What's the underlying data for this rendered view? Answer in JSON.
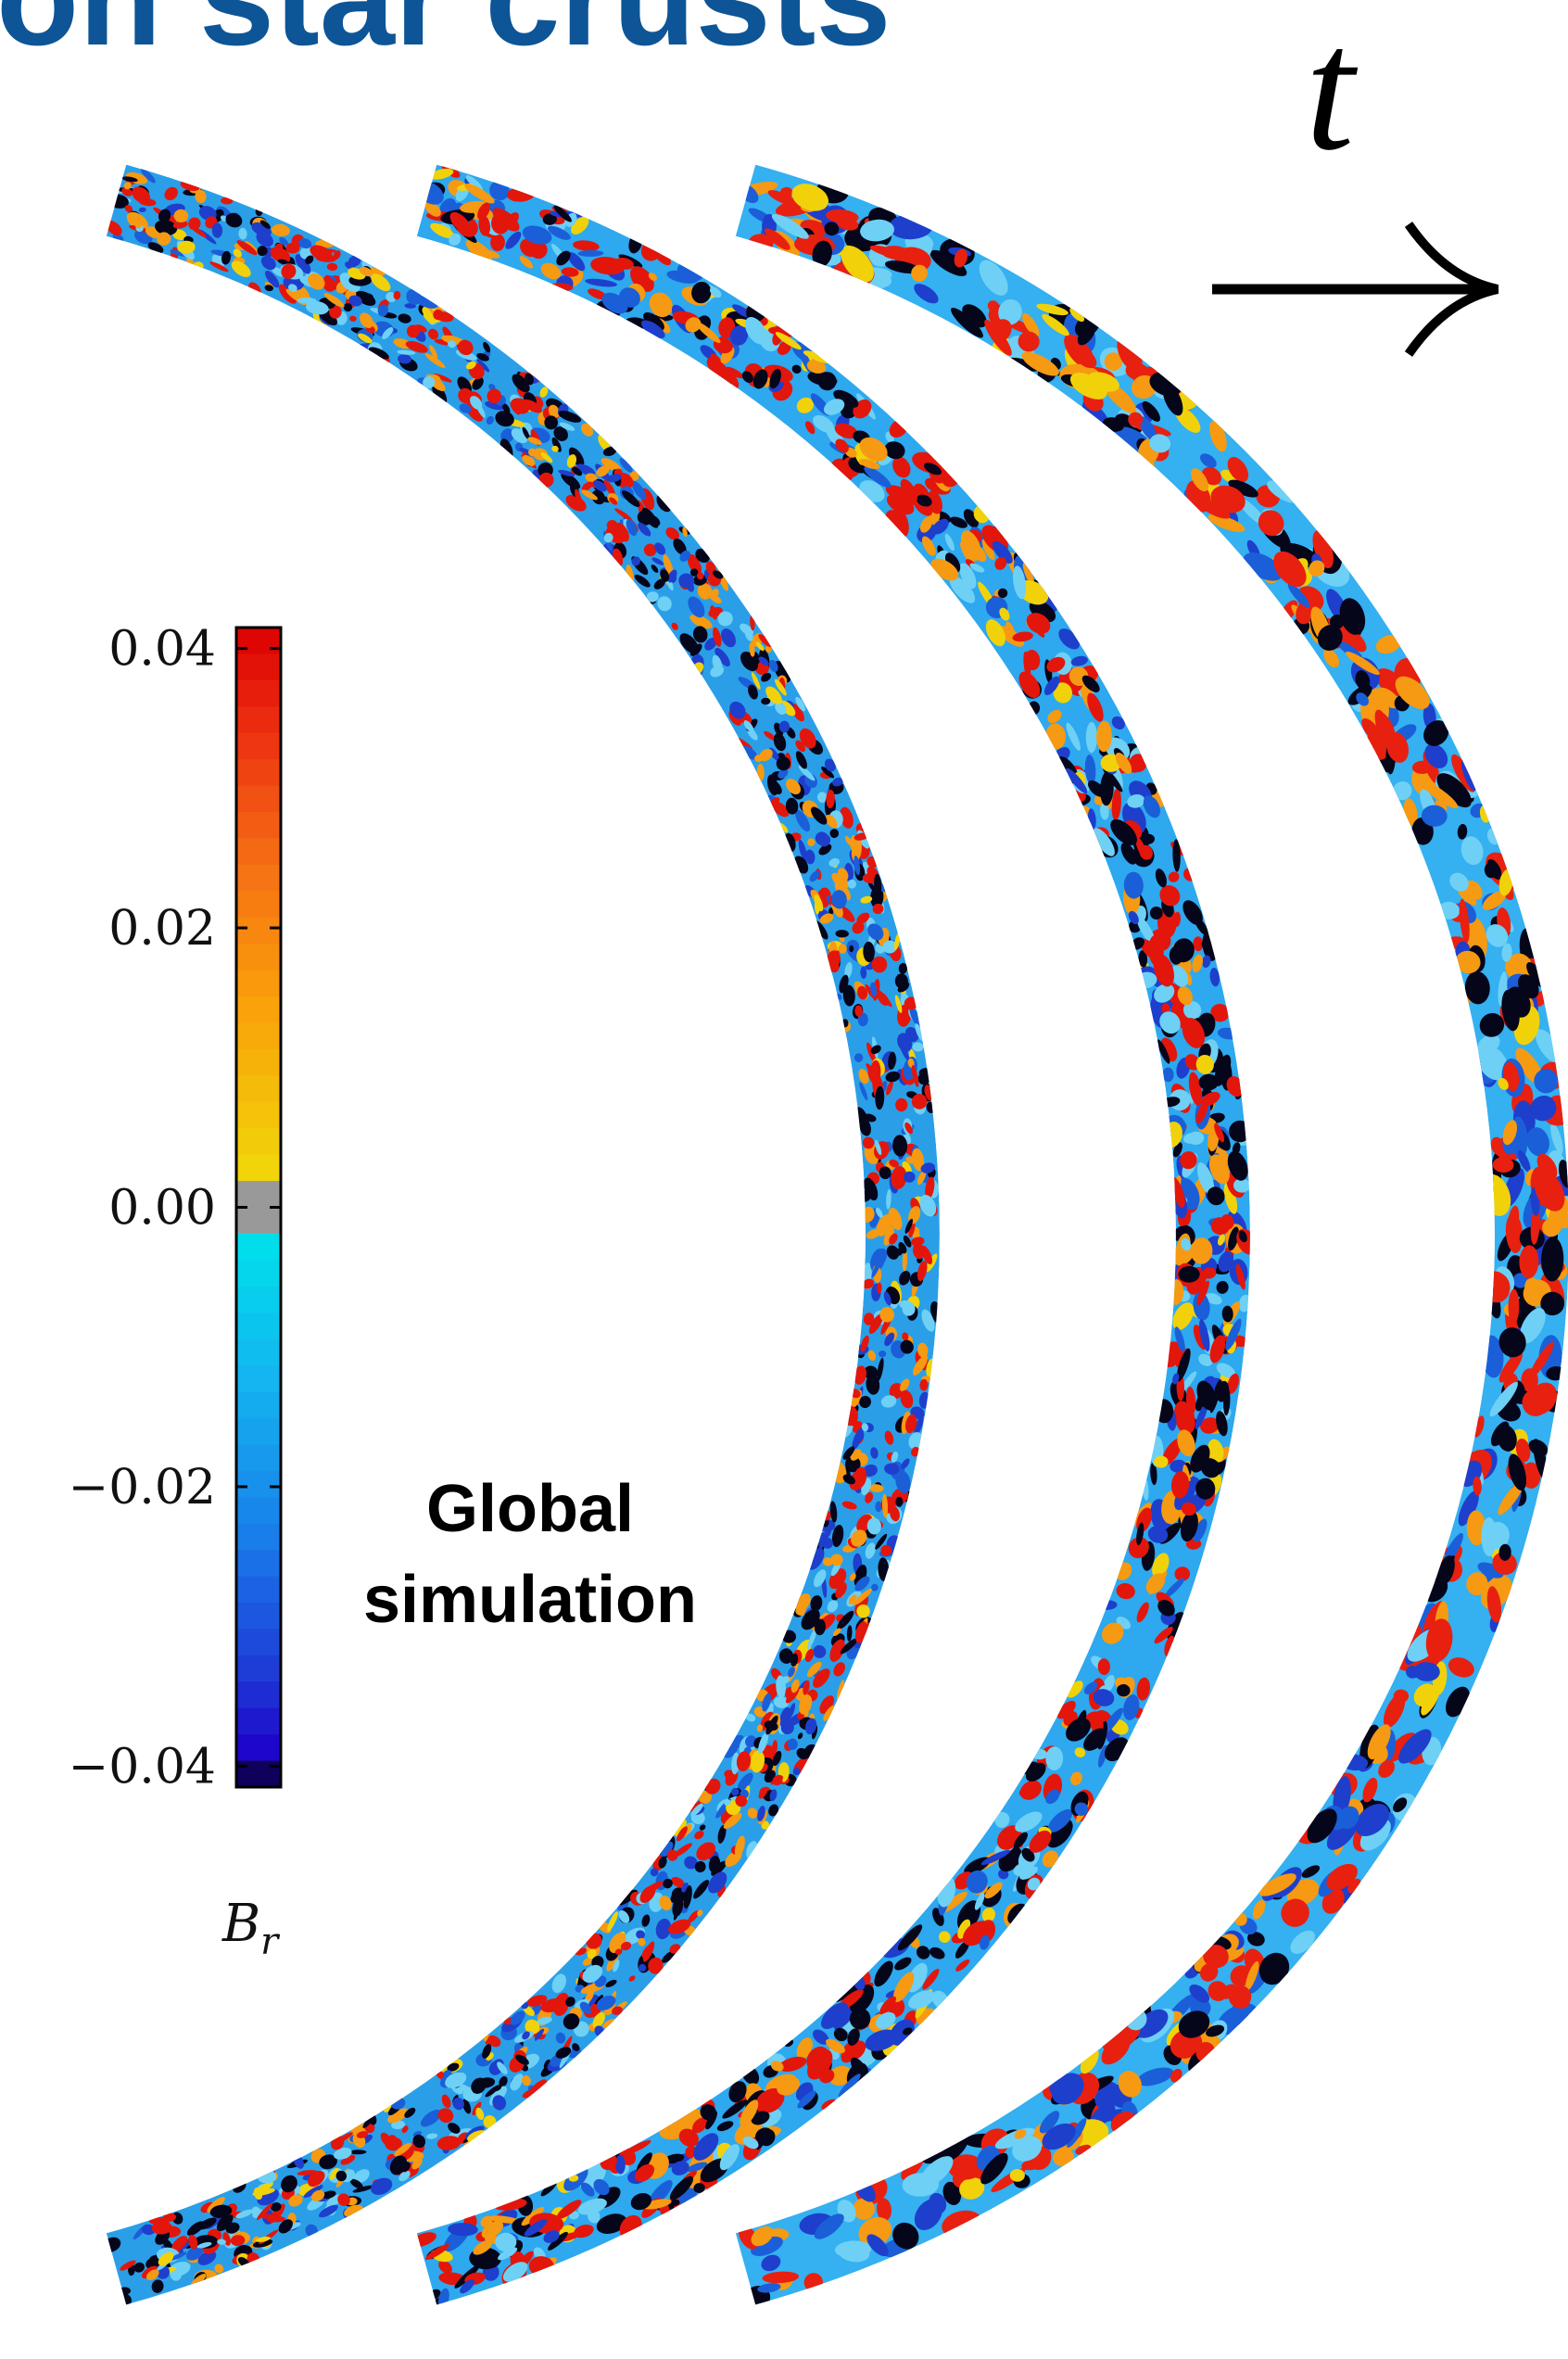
{
  "title": "on star crusts",
  "time_label": "t",
  "colorbar": {
    "ticks": [
      0.04,
      0.02,
      {
        "value": 0,
        "label": "0.00"
      },
      {
        "value": -0.02,
        "label": "−0.02"
      },
      {
        "value": -0.04,
        "label": "−0.04"
      }
    ],
    "lim": [
      -0.0415,
      0.0415
    ],
    "label": "B",
    "label_subscript": "r"
  },
  "annotation": [
    "Global",
    "simulation"
  ]
}
